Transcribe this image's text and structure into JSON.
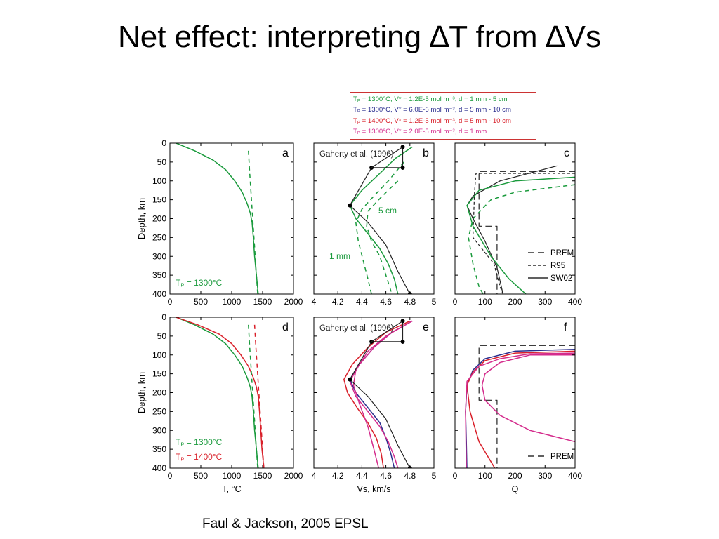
{
  "slide": {
    "title": "Net effect: interpreting ∆T from ∆Vs",
    "citation": "Faul & Jackson, 2005 EPSL"
  },
  "legend": {
    "entries": [
      {
        "text": "Tₚ = 1300°C, V* = 1.2E-5 mol m⁻³, d = 1 mm -  5 cm",
        "color": "#1a9a3c"
      },
      {
        "text": "Tₚ = 1300°C, V* = 6.0E-6 mol m⁻³, d = 5 mm - 10 cm",
        "color": "#2b2e8e"
      },
      {
        "text": "Tₚ = 1400°C, V* = 1.2E-5 mol m⁻³, d = 5 mm - 10 cm",
        "color": "#d9202a"
      },
      {
        "text": "Tₚ = 1300°C, V* = 2.0E-5 mol m⁻³, d = 1 mm",
        "color": "#d42b8c"
      }
    ]
  },
  "colors": {
    "green": "#1a9a3c",
    "blue": "#2b2e8e",
    "red": "#d9202a",
    "magenta": "#d42b8c",
    "black": "#222222"
  },
  "chart_data": [
    {
      "panel": "a",
      "type": "line",
      "xlim": [
        0,
        2000
      ],
      "ylim": [
        0,
        400
      ],
      "y_inverted": true,
      "xticks": [
        "0",
        "500",
        "1000",
        "1500",
        "2000"
      ],
      "yticks": [
        "0",
        "50",
        "100",
        "150",
        "200",
        "250",
        "300",
        "350",
        "400"
      ],
      "ylabel": "Depth, km",
      "xlabel": "",
      "annotations": [
        {
          "text": "Tₚ = 1300°C",
          "color": "green"
        }
      ],
      "series": [
        {
          "color": "green",
          "dash": false,
          "x": [
            100,
            400,
            700,
            900,
            1050,
            1170,
            1250,
            1300,
            1330,
            1350,
            1370,
            1400,
            1430
          ],
          "y": [
            0,
            20,
            45,
            70,
            100,
            130,
            160,
            185,
            210,
            250,
            300,
            350,
            400
          ]
        },
        {
          "color": "green",
          "dash": true,
          "x": [
            1270,
            1290,
            1310,
            1330,
            1350,
            1370,
            1390,
            1420
          ],
          "y": [
            20,
            75,
            125,
            175,
            225,
            275,
            325,
            400
          ]
        }
      ]
    },
    {
      "panel": "b",
      "type": "line",
      "xlim": [
        4,
        5
      ],
      "ylim": [
        0,
        400
      ],
      "y_inverted": true,
      "xticks": [
        "4",
        "4.2",
        "4.4",
        "4.6",
        "4.8",
        "5"
      ],
      "yticks": [],
      "xlabel": "",
      "annotations": [
        {
          "text": "Gaherty et al. (1996)",
          "color": "black"
        },
        {
          "text": "5 cm",
          "color": "green"
        },
        {
          "text": "1 mm",
          "color": "green"
        }
      ],
      "series": [
        {
          "color": "green",
          "dash": false,
          "x": [
            4.82,
            4.68,
            4.55,
            4.4,
            4.3,
            4.35,
            4.45,
            4.55,
            4.62,
            4.67,
            4.7
          ],
          "y": [
            10,
            40,
            80,
            125,
            165,
            200,
            240,
            280,
            320,
            360,
            400
          ]
        },
        {
          "color": "green",
          "dash": true,
          "x": [
            4.75,
            4.62,
            4.5,
            4.4,
            4.35,
            4.37,
            4.41,
            4.45,
            4.48
          ],
          "y": [
            50,
            100,
            140,
            175,
            210,
            260,
            310,
            360,
            400
          ]
        },
        {
          "color": "green",
          "dash": true,
          "x": [
            4.7,
            4.57,
            4.45,
            4.44,
            4.48,
            4.55,
            4.6,
            4.65
          ],
          "y": [
            100,
            140,
            180,
            220,
            260,
            300,
            350,
            400
          ]
        },
        {
          "color": "black",
          "dash": false,
          "x": [
            4.74,
            4.74,
            4.48,
            4.74,
            4.74
          ],
          "y": [
            10,
            65,
            65,
            65,
            10
          ],
          "markers": [
            0,
            1,
            2
          ]
        },
        {
          "color": "black",
          "dash": false,
          "x": [
            4.74,
            4.48,
            4.3,
            4.45,
            4.6,
            4.7,
            4.8
          ],
          "y": [
            10,
            65,
            165,
            210,
            270,
            340,
            400
          ],
          "markers": [
            2,
            6
          ]
        }
      ]
    },
    {
      "panel": "c",
      "type": "line",
      "xlim": [
        0,
        400
      ],
      "ylim": [
        0,
        400
      ],
      "y_inverted": true,
      "xticks": [
        "0",
        "100",
        "200",
        "300",
        "400"
      ],
      "yticks": [],
      "xlabel": "",
      "legend": [
        {
          "text": "PREM"
        },
        {
          "text": "R95"
        },
        {
          "text": "SW02"
        }
      ],
      "series": [
        {
          "color": "black",
          "dash": "long",
          "x": [
            400,
            80,
            80,
            140,
            140,
            140
          ],
          "y": [
            75,
            75,
            220,
            220,
            400,
            400
          ]
        },
        {
          "color": "black",
          "dash": "short",
          "x": [
            400,
            70,
            65,
            60,
            130,
            150,
            160
          ],
          "y": [
            80,
            80,
            130,
            250,
            320,
            380,
            400
          ]
        },
        {
          "color": "black",
          "dash": false,
          "x": [
            340,
            150,
            60,
            40,
            60,
            100,
            140,
            160
          ],
          "y": [
            60,
            100,
            140,
            165,
            200,
            260,
            330,
            400
          ]
        },
        {
          "color": "green",
          "dash": false,
          "x": [
            400,
            200,
            80,
            40,
            60,
            120,
            180,
            250
          ],
          "y": [
            90,
            100,
            125,
            165,
            220,
            300,
            360,
            410
          ]
        },
        {
          "color": "green",
          "dash": true,
          "x": [
            400,
            200,
            120,
            60,
            45,
            60,
            80,
            100
          ],
          "y": [
            110,
            130,
            150,
            200,
            250,
            320,
            380,
            410
          ]
        }
      ]
    },
    {
      "panel": "d",
      "type": "line",
      "xlim": [
        0,
        2000
      ],
      "ylim": [
        0,
        400
      ],
      "y_inverted": true,
      "xticks": [
        "0",
        "500",
        "1000",
        "1500",
        "2000"
      ],
      "yticks": [
        "0",
        "50",
        "100",
        "150",
        "200",
        "250",
        "300",
        "350",
        "400"
      ],
      "ylabel": "Depth, km",
      "xlabel": "T, °C",
      "annotations": [
        {
          "text": "Tₚ = 1300°C",
          "color": "green"
        },
        {
          "text": "Tₚ = 1400°C",
          "color": "red"
        }
      ],
      "series": [
        {
          "color": "green",
          "dash": false,
          "x": [
            100,
            400,
            700,
            900,
            1050,
            1170,
            1250,
            1300,
            1330,
            1350,
            1370,
            1400,
            1430
          ],
          "y": [
            0,
            20,
            45,
            70,
            100,
            130,
            160,
            185,
            210,
            250,
            300,
            350,
            400
          ]
        },
        {
          "color": "red",
          "dash": false,
          "x": [
            100,
            450,
            800,
            1000,
            1150,
            1270,
            1350,
            1400,
            1430,
            1450,
            1470,
            1490,
            1520
          ],
          "y": [
            0,
            20,
            45,
            70,
            100,
            130,
            160,
            185,
            210,
            250,
            300,
            350,
            400
          ]
        },
        {
          "color": "green",
          "dash": true,
          "x": [
            1270,
            1290,
            1310,
            1330,
            1350,
            1370,
            1390,
            1420
          ],
          "y": [
            20,
            75,
            125,
            175,
            225,
            275,
            325,
            400
          ]
        },
        {
          "color": "red",
          "dash": true,
          "x": [
            1370,
            1390,
            1410,
            1430,
            1450,
            1470,
            1490,
            1520
          ],
          "y": [
            20,
            75,
            125,
            175,
            225,
            275,
            325,
            400
          ]
        }
      ]
    },
    {
      "panel": "e",
      "type": "line",
      "xlim": [
        4,
        5
      ],
      "ylim": [
        0,
        400
      ],
      "y_inverted": true,
      "xticks": [
        "4",
        "4.2",
        "4.4",
        "4.6",
        "4.8",
        "5"
      ],
      "yticks": [],
      "xlabel": "Vs, km/s",
      "annotations": [
        {
          "text": "Gaherty et al. (1996)",
          "color": "black"
        }
      ],
      "series": [
        {
          "color": "blue",
          "dash": false,
          "x": [
            4.82,
            4.65,
            4.5,
            4.38,
            4.3,
            4.35,
            4.45,
            4.55,
            4.6,
            4.64,
            4.67
          ],
          "y": [
            10,
            40,
            80,
            125,
            165,
            200,
            240,
            280,
            320,
            360,
            400
          ]
        },
        {
          "color": "magenta",
          "dash": false,
          "x": [
            4.82,
            4.65,
            4.5,
            4.38,
            4.3,
            4.35,
            4.45,
            4.55,
            4.62,
            4.67,
            4.7
          ],
          "y": [
            10,
            40,
            80,
            125,
            170,
            210,
            250,
            290,
            330,
            370,
            400
          ]
        },
        {
          "color": "red",
          "dash": false,
          "x": [
            4.8,
            4.6,
            4.45,
            4.32,
            4.25,
            4.28,
            4.36,
            4.45,
            4.52,
            4.56,
            4.58
          ],
          "y": [
            10,
            40,
            80,
            125,
            165,
            200,
            240,
            280,
            320,
            360,
            400
          ]
        },
        {
          "color": "magenta",
          "dash": false,
          "x": [
            4.82,
            4.6,
            4.45,
            4.35,
            4.33,
            4.38,
            4.45,
            4.5,
            4.54
          ],
          "y": [
            10,
            50,
            90,
            140,
            180,
            230,
            290,
            350,
            400
          ]
        },
        {
          "color": "black",
          "dash": false,
          "x": [
            4.74,
            4.74,
            4.48,
            4.74,
            4.74
          ],
          "y": [
            10,
            65,
            65,
            65,
            10
          ],
          "markers": [
            0,
            1,
            2
          ]
        },
        {
          "color": "black",
          "dash": false,
          "x": [
            4.74,
            4.48,
            4.3,
            4.45,
            4.6,
            4.7,
            4.8
          ],
          "y": [
            10,
            65,
            165,
            210,
            270,
            340,
            400
          ],
          "markers": [
            2,
            6
          ]
        }
      ]
    },
    {
      "panel": "f",
      "type": "line",
      "xlim": [
        0,
        400
      ],
      "ylim": [
        0,
        400
      ],
      "y_inverted": true,
      "xticks": [
        "0",
        "100",
        "200",
        "300",
        "400"
      ],
      "yticks": [],
      "xlabel": "Q",
      "legend": [
        {
          "text": "PREM"
        }
      ],
      "series": [
        {
          "color": "black",
          "dash": "long",
          "x": [
            400,
            80,
            80,
            140,
            140,
            140
          ],
          "y": [
            75,
            75,
            220,
            220,
            400,
            400
          ]
        },
        {
          "color": "blue",
          "dash": false,
          "x": [
            400,
            200,
            100,
            60,
            40,
            35,
            38,
            40
          ],
          "y": [
            85,
            90,
            110,
            140,
            180,
            250,
            330,
            410
          ]
        },
        {
          "color": "red",
          "dash": false,
          "x": [
            400,
            200,
            100,
            60,
            40,
            50,
            80,
            140
          ],
          "y": [
            90,
            95,
            115,
            145,
            180,
            250,
            330,
            410
          ]
        },
        {
          "color": "magenta",
          "dash": false,
          "x": [
            400,
            250,
            150,
            100,
            90,
            100,
            150,
            250,
            400
          ],
          "y": [
            100,
            100,
            120,
            150,
            180,
            220,
            260,
            300,
            330
          ]
        },
        {
          "color": "magenta",
          "dash": false,
          "x": [
            400,
            250,
            150,
            80,
            40,
            35,
            38
          ],
          "y": [
            95,
            97,
            110,
            130,
            170,
            250,
            410
          ]
        }
      ]
    }
  ]
}
